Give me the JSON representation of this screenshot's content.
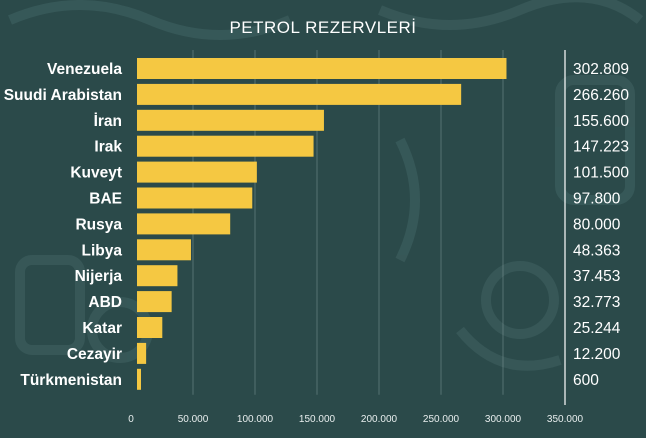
{
  "theme": {
    "background": "#2b4a4a",
    "bar_color": "#f5c842",
    "text_color": "#ffffff"
  },
  "chart_data": {
    "type": "bar",
    "orientation": "horizontal",
    "title": "PETROL REZERVLERİ",
    "categories": [
      "Venezuela",
      "Suudi Arabistan",
      "İran",
      "Irak",
      "Kuveyt",
      "BAE",
      "Rusya",
      "Libya",
      "Nijerja",
      "ABD",
      "Katar",
      "Cezayir",
      "Türkmenistan"
    ],
    "values": [
      302809,
      266260,
      155600,
      147223,
      101500,
      97800,
      80000,
      48363,
      37453,
      32773,
      25244,
      12200,
      600
    ],
    "value_labels": [
      "302.809",
      "266.260",
      "155.600",
      "147.223",
      "101.500",
      "97.800",
      "80.000",
      "48.363",
      "37.453",
      "32.773",
      "25.244",
      "12.200",
      "600"
    ],
    "xlim": [
      0,
      350000
    ],
    "xticks": [
      0,
      50000,
      100000,
      150000,
      200000,
      250000,
      300000,
      350000
    ],
    "xtick_labels": [
      "0",
      "50.000",
      "100.000",
      "150.000",
      "200.000",
      "250.000",
      "300.000",
      "350.000"
    ],
    "grid": true,
    "legend": false,
    "xlabel": "",
    "ylabel": ""
  }
}
